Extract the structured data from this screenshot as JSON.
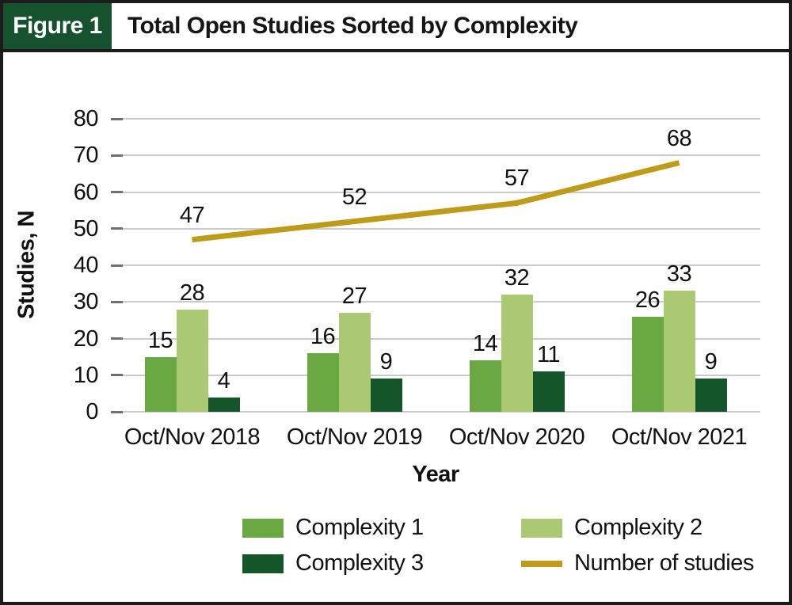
{
  "header": {
    "figure_label": "Figure 1",
    "title": "Total Open Studies Sorted by Complexity",
    "badge_color": "#17522f"
  },
  "chart_data": {
    "type": "bar",
    "subtype": "grouped bars with line overlay",
    "title": "Total Open Studies Sorted by Complexity",
    "categories": [
      "Oct/Nov 2018",
      "Oct/Nov 2019",
      "Oct/Nov 2020",
      "Oct/Nov 2021"
    ],
    "series": [
      {
        "name": "Complexity 1",
        "type": "bar",
        "color": "#6aa844",
        "values": [
          15,
          16,
          14,
          26
        ]
      },
      {
        "name": "Complexity 2",
        "type": "bar",
        "color": "#abc873",
        "values": [
          28,
          27,
          32,
          33
        ]
      },
      {
        "name": "Complexity 3",
        "type": "bar",
        "color": "#14552a",
        "values": [
          4,
          9,
          11,
          9
        ]
      },
      {
        "name": "Number of studies",
        "type": "line",
        "color": "#bf9b1a",
        "values": [
          47,
          52,
          57,
          68
        ]
      }
    ],
    "xlabel": "Year",
    "ylabel": "Studies, N",
    "ylim": [
      0,
      80
    ],
    "yticks": [
      0,
      10,
      20,
      30,
      40,
      50,
      60,
      70,
      80
    ],
    "grid": true,
    "data_labels": true,
    "legend_position": "bottom",
    "gridline_color": "#cacaca"
  }
}
